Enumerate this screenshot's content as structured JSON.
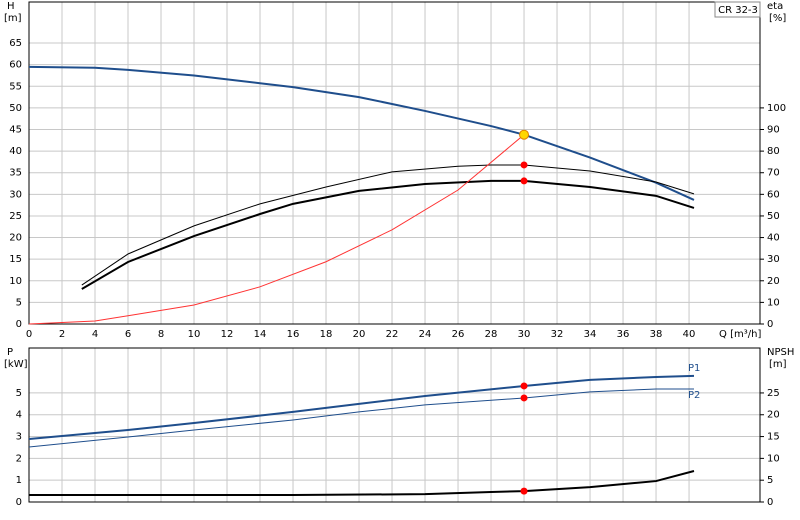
{
  "chart_data": [
    {
      "type": "line",
      "title": "CR 32-3",
      "ylabel": "H",
      "yunit": "[m]",
      "y2label": "eta",
      "y2unit": "[%]",
      "xlabel": "Q [m³/h]",
      "xlim": [
        0,
        44.3
      ],
      "xticks": [
        0,
        2,
        4,
        6,
        8,
        10,
        12,
        14,
        16,
        18,
        20,
        22,
        24,
        26,
        28,
        30,
        32,
        34,
        36,
        38,
        40
      ],
      "ylim": [
        0,
        74.5
      ],
      "yticks": [
        0,
        5,
        10,
        15,
        20,
        25,
        30,
        35,
        40,
        45,
        50,
        55,
        60,
        65
      ],
      "y2lim": [
        0,
        149
      ],
      "y2ticks": [
        0,
        10,
        20,
        30,
        40,
        50,
        60,
        70,
        80,
        90,
        100
      ],
      "grid": true,
      "series": [
        {
          "color": "#1f4e8c",
          "line_width": 2,
          "x": [
            0,
            4,
            6,
            10,
            14,
            16,
            20,
            24,
            28,
            30,
            34,
            38,
            40.3
          ],
          "values": [
            59.5,
            59.3,
            58.8,
            57.5,
            55.7,
            54.8,
            52.5,
            49.3,
            45.8,
            43.8,
            38.5,
            32.7,
            28.7
          ]
        },
        {
          "color": "#000000",
          "line_width": 1,
          "axis": "y2",
          "x": [
            3.2,
            6,
            10,
            14,
            18,
            22,
            26,
            28,
            30,
            34,
            38,
            40.3
          ],
          "values": [
            18,
            32.4,
            45.4,
            55.6,
            63.4,
            70.4,
            73,
            73.6,
            73.6,
            70.8,
            65.7,
            60.2
          ]
        },
        {
          "color": "#000000",
          "line_width": 2,
          "axis": "y2",
          "x": [
            3.2,
            6,
            10,
            14,
            16,
            20,
            24,
            28,
            30,
            34,
            38,
            40.3
          ],
          "values": [
            16.2,
            28.7,
            40.7,
            50.9,
            55.6,
            61.6,
            64.8,
            66.2,
            66.2,
            63.4,
            59.3,
            53.7
          ]
        },
        {
          "color": "#ff3333",
          "line_width": 1,
          "x": [
            0,
            4,
            6,
            10,
            14,
            18,
            22,
            26,
            30
          ],
          "values": [
            0,
            0.7,
            1.9,
            4.4,
            8.6,
            14.4,
            21.8,
            31,
            43.8
          ]
        }
      ],
      "points": [
        {
          "color": "#ffd700",
          "x": 30,
          "y": 43.8
        },
        {
          "color": "#ff0000",
          "axis": "y2",
          "x": 30,
          "y": 73.6
        },
        {
          "color": "#ff0000",
          "axis": "y2",
          "x": 30,
          "y": 66.2
        }
      ]
    },
    {
      "type": "line",
      "ylabel": "P",
      "yunit": "[kW]",
      "y2label": "NPSH",
      "y2unit": "[m]",
      "xlim": [
        0,
        44.3
      ],
      "ylim": [
        0,
        7.06
      ],
      "yticks": [
        0,
        1,
        2,
        3,
        4,
        5
      ],
      "y2lim": [
        0,
        35.3
      ],
      "y2ticks": [
        0,
        5,
        10,
        15,
        20,
        25
      ],
      "grid": true,
      "series": [
        {
          "name": "P1",
          "color": "#1f4e8c",
          "line_width": 2,
          "x": [
            0,
            6,
            10,
            16,
            20,
            24,
            30,
            34,
            38,
            40.3
          ],
          "values": [
            2.89,
            3.3,
            3.62,
            4.13,
            4.5,
            4.86,
            5.32,
            5.6,
            5.73,
            5.78
          ]
        },
        {
          "name": "P2",
          "color": "#1f4e8c",
          "line_width": 1,
          "x": [
            0,
            6,
            10,
            16,
            20,
            24,
            30,
            34,
            38,
            40.3
          ],
          "values": [
            2.52,
            2.98,
            3.3,
            3.76,
            4.13,
            4.45,
            4.77,
            5.05,
            5.18,
            5.18
          ]
        },
        {
          "color": "#000000",
          "line_width": 2,
          "axis": "y2",
          "x": [
            0,
            16,
            24,
            28,
            30,
            34,
            38,
            40.3
          ],
          "values": [
            1.6,
            1.6,
            1.8,
            2.3,
            2.5,
            3.4,
            4.8,
            7.1
          ]
        }
      ],
      "points": [
        {
          "color": "#ff0000",
          "x": 30,
          "y": 5.32
        },
        {
          "color": "#ff0000",
          "x": 30,
          "y": 4.77
        },
        {
          "color": "#ff0000",
          "axis": "y2",
          "x": 30,
          "y": 2.5
        }
      ]
    }
  ]
}
